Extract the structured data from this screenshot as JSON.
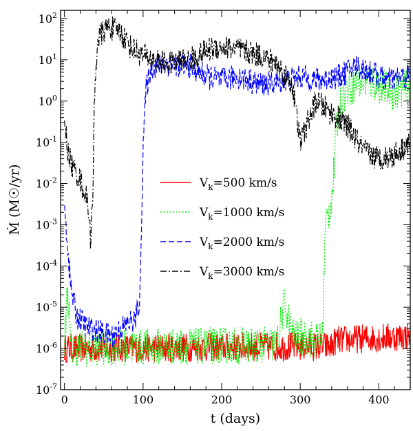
{
  "chart_data": {
    "type": "line",
    "xlabel": "t (days)",
    "ylabel": "Ṁ (M☉/yr)",
    "xlim": [
      -5,
      440
    ],
    "ylim_log10": [
      -7,
      2.2
    ],
    "x_ticks": [
      {
        "value": 0,
        "label": "0"
      },
      {
        "value": 100,
        "label": "100"
      },
      {
        "value": 200,
        "label": "200"
      },
      {
        "value": 300,
        "label": "300"
      },
      {
        "value": 400,
        "label": "400"
      }
    ],
    "y_ticks": [
      {
        "exp": 2,
        "base": "10",
        "sup": "2"
      },
      {
        "exp": 1,
        "base": "10",
        "sup": "1"
      },
      {
        "exp": 0,
        "base": "10",
        "sup": "0"
      },
      {
        "exp": -1,
        "base": "10",
        "sup": "-1"
      },
      {
        "exp": -2,
        "base": "10",
        "sup": "-2"
      },
      {
        "exp": -3,
        "base": "10",
        "sup": "-3"
      },
      {
        "exp": -4,
        "base": "10",
        "sup": "-4"
      },
      {
        "exp": -5,
        "base": "10",
        "sup": "-5"
      },
      {
        "exp": -6,
        "base": "10",
        "sup": "-6"
      },
      {
        "exp": -7,
        "base": "10",
        "sup": "-7"
      }
    ],
    "legend": [
      {
        "label_main": "V",
        "label_sub": "k",
        "label_rest": "=500  km/s",
        "color": "#ff0000",
        "style": "solid"
      },
      {
        "label_main": "V",
        "label_sub": "k",
        "label_rest": "=1000  km/s",
        "color": "#00ee00",
        "style": "dotted"
      },
      {
        "label_main": "V",
        "label_sub": "k",
        "label_rest": "=2000  km/s",
        "color": "#0000ff",
        "style": "dashed"
      },
      {
        "label_main": "V",
        "label_sub": "k",
        "label_rest": "=3000  km/s",
        "color": "#000000",
        "style": "dashdot"
      }
    ],
    "series": [
      {
        "name": "Vk=500 km/s",
        "color": "#ff0000",
        "style": "solid",
        "noise": 0.35,
        "points": [
          [
            0,
            -6.0
          ],
          [
            340,
            -5.95
          ],
          [
            345,
            -5.8
          ],
          [
            440,
            -5.7
          ]
        ]
      },
      {
        "name": "Vk=1000 km/s",
        "color": "#00ee00",
        "style": "dotted",
        "noise": 0.45,
        "points": [
          [
            0,
            -5.8
          ],
          [
            4,
            -4.5
          ],
          [
            8,
            -6.0
          ],
          [
            270,
            -5.9
          ],
          [
            280,
            -4.9
          ],
          [
            290,
            -5.7
          ],
          [
            328,
            -5.8
          ],
          [
            332,
            -3.0
          ],
          [
            338,
            -2.6
          ],
          [
            342,
            -2.0
          ],
          [
            346,
            -0.6
          ],
          [
            352,
            0.0
          ],
          [
            360,
            0.3
          ],
          [
            380,
            0.5
          ],
          [
            400,
            0.4
          ],
          [
            420,
            0.2
          ],
          [
            440,
            0.4
          ]
        ]
      },
      {
        "name": "Vk=2000 km/s",
        "color": "#0000ff",
        "style": "dashed",
        "noise": 0.3,
        "points": [
          [
            0,
            -2.6
          ],
          [
            4,
            -3.5
          ],
          [
            8,
            -4.5
          ],
          [
            15,
            -5.2
          ],
          [
            30,
            -5.5
          ],
          [
            60,
            -5.7
          ],
          [
            80,
            -5.4
          ],
          [
            90,
            -5.3
          ],
          [
            96,
            -4.8
          ],
          [
            100,
            -1.0
          ],
          [
            104,
            0.3
          ],
          [
            110,
            0.8
          ],
          [
            125,
            0.9
          ],
          [
            140,
            0.9
          ],
          [
            160,
            0.85
          ],
          [
            180,
            0.6
          ],
          [
            200,
            0.5
          ],
          [
            220,
            0.6
          ],
          [
            250,
            0.4
          ],
          [
            270,
            0.45
          ],
          [
            300,
            0.6
          ],
          [
            320,
            0.5
          ],
          [
            350,
            0.6
          ],
          [
            370,
            0.85
          ],
          [
            390,
            0.7
          ],
          [
            410,
            0.5
          ],
          [
            440,
            0.6
          ]
        ]
      },
      {
        "name": "Vk=3000 km/s",
        "color": "#000000",
        "style": "dashdot",
        "noise": 0.3,
        "points": [
          [
            0,
            -0.4
          ],
          [
            4,
            -1.2
          ],
          [
            10,
            -1.6
          ],
          [
            20,
            -1.9
          ],
          [
            30,
            -2.5
          ],
          [
            33,
            -3.3
          ],
          [
            36,
            -2.5
          ],
          [
            38,
            0.0
          ],
          [
            42,
            1.5
          ],
          [
            55,
            1.8
          ],
          [
            70,
            1.7
          ],
          [
            85,
            1.3
          ],
          [
            100,
            1.1
          ],
          [
            130,
            0.9
          ],
          [
            160,
            1.0
          ],
          [
            190,
            1.3
          ],
          [
            210,
            1.3
          ],
          [
            230,
            1.2
          ],
          [
            250,
            1.1
          ],
          [
            270,
            0.9
          ],
          [
            290,
            0.4
          ],
          [
            300,
            -1.0
          ],
          [
            320,
            0.0
          ],
          [
            340,
            -0.3
          ],
          [
            360,
            -0.6
          ],
          [
            380,
            -1.2
          ],
          [
            400,
            -1.4
          ],
          [
            420,
            -1.3
          ],
          [
            440,
            -1.0
          ]
        ]
      }
    ]
  }
}
